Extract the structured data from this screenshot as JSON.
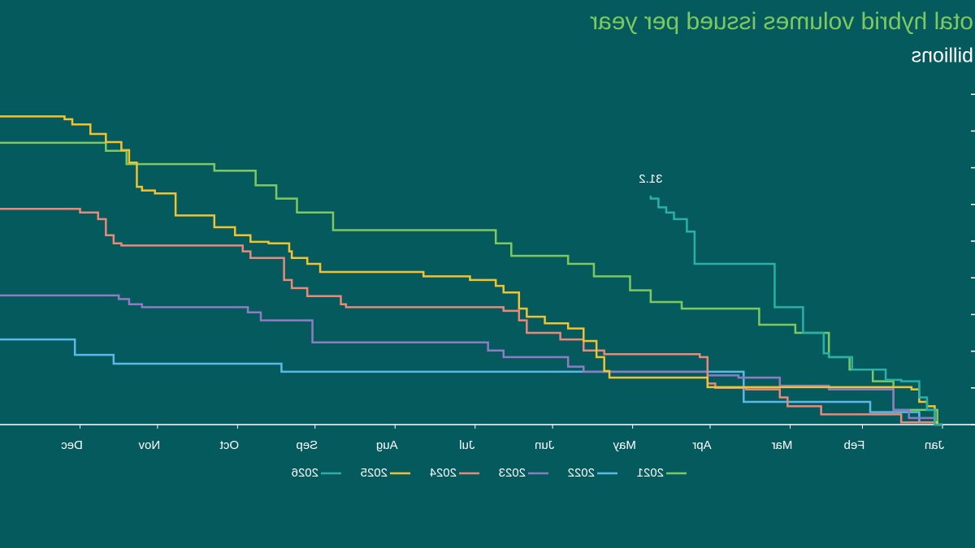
{
  "chart_data": {
    "type": "step-line",
    "title": "otal hybrid volumes issued per year",
    "subtitle": "billions",
    "mirrored": true,
    "xlim": [
      0,
      365
    ],
    "xticks": [
      {
        "value": 0,
        "label": "Jan"
      },
      {
        "value": 31,
        "label": "Feb"
      },
      {
        "value": 59,
        "label": "Mar"
      },
      {
        "value": 90,
        "label": "Apr"
      },
      {
        "value": 120,
        "label": "May"
      },
      {
        "value": 151,
        "label": "Jun"
      },
      {
        "value": 181,
        "label": "Jul"
      },
      {
        "value": 212,
        "label": "Aug"
      },
      {
        "value": 243,
        "label": "Sep"
      },
      {
        "value": 273,
        "label": "Oct"
      },
      {
        "value": 304,
        "label": "Nov"
      },
      {
        "value": 334,
        "label": "Dec"
      }
    ],
    "ylim": [
      0,
      45
    ],
    "yticks": [
      0,
      5,
      10,
      15,
      20,
      25,
      30,
      35,
      40,
      45
    ],
    "series": [
      {
        "name": "2021",
        "color": "#7dc95e",
        "x": [
          0,
          2,
          19,
          27,
          36,
          44,
          57,
          71,
          101,
          113,
          121,
          135,
          145,
          167,
          173,
          236,
          250,
          258,
          266,
          282,
          316,
          324,
          365
        ],
        "values": [
          0,
          2.0,
          5.9,
          7.5,
          9.2,
          12.5,
          13.6,
          15.8,
          16.7,
          18.3,
          20.2,
          21.9,
          23.0,
          24.7,
          26.5,
          28.9,
          30.8,
          32.6,
          34.6,
          35.5,
          37.3,
          38.4,
          38.4
        ]
      },
      {
        "name": "2022",
        "color": "#5bb8e8",
        "x": [
          0,
          3,
          9,
          28,
          77,
          256,
          321,
          336,
          365
        ],
        "values": [
          0,
          0.3,
          1.7,
          3.1,
          7.2,
          8.3,
          9.5,
          11.6,
          11.6
        ]
      },
      {
        "name": "2023",
        "color": "#8e7cc3",
        "x": [
          0,
          3,
          13,
          19,
          44,
          63,
          79,
          91,
          139,
          145,
          170,
          176,
          244,
          264,
          269,
          310,
          315,
          319,
          365
        ],
        "values": [
          0,
          0.9,
          2.0,
          4.8,
          5.3,
          6.4,
          6.7,
          7.2,
          7.9,
          9.2,
          10.1,
          11.2,
          14.2,
          15.3,
          16.0,
          16.4,
          17.1,
          17.6,
          17.6
        ]
      },
      {
        "name": "2024",
        "color": "#e8897a",
        "x": [
          0,
          3,
          16,
          47,
          60,
          63,
          76,
          88,
          91,
          94,
          131,
          139,
          148,
          161,
          164,
          170,
          231,
          233,
          246,
          252,
          255,
          268,
          271,
          318,
          321,
          324,
          327,
          334,
          365
        ],
        "values": [
          0,
          0.3,
          1.4,
          2.5,
          3.7,
          4.8,
          5.0,
          5.6,
          9.2,
          9.6,
          10.1,
          11.6,
          12.5,
          14.2,
          15.5,
          16.0,
          16.4,
          17.5,
          18.6,
          19.7,
          22.7,
          23.6,
          24.4,
          24.7,
          25.8,
          28.0,
          28.9,
          29.4,
          29.5
        ]
      },
      {
        "name": "2025",
        "color": "#f2c230",
        "x": [
          0,
          2,
          3,
          6,
          9,
          12,
          91,
          129,
          131,
          134,
          139,
          145,
          154,
          161,
          164,
          170,
          173,
          183,
          201,
          241,
          246,
          252,
          253,
          261,
          268,
          274,
          282,
          297,
          305,
          310,
          312,
          315,
          318,
          324,
          330,
          337,
          340,
          365
        ],
        "values": [
          0,
          0.3,
          2.5,
          3.1,
          4.8,
          5.1,
          6.4,
          7.3,
          9.2,
          11.4,
          13.1,
          13.8,
          14.7,
          15.8,
          18.0,
          18.9,
          19.7,
          20.2,
          20.8,
          21.9,
          22.7,
          23.6,
          24.7,
          24.9,
          25.8,
          26.9,
          28.5,
          31.5,
          31.9,
          32.4,
          35.7,
          37.4,
          38.5,
          39.6,
          40.9,
          41.6,
          42.0,
          42.0
        ]
      },
      {
        "name": "2026",
        "color": "#2ab0a8",
        "show_last_label": true,
        "x": [
          0,
          3,
          6,
          9,
          16,
          22,
          35,
          44,
          46,
          54,
          65,
          96,
          99,
          104,
          107,
          110,
          113
        ],
        "values": [
          0,
          2.0,
          3.7,
          5.9,
          6.1,
          7.5,
          9.2,
          9.7,
          12.5,
          16.0,
          21.9,
          26.3,
          28.0,
          28.9,
          29.6,
          30.8,
          31.2
        ]
      }
    ]
  }
}
